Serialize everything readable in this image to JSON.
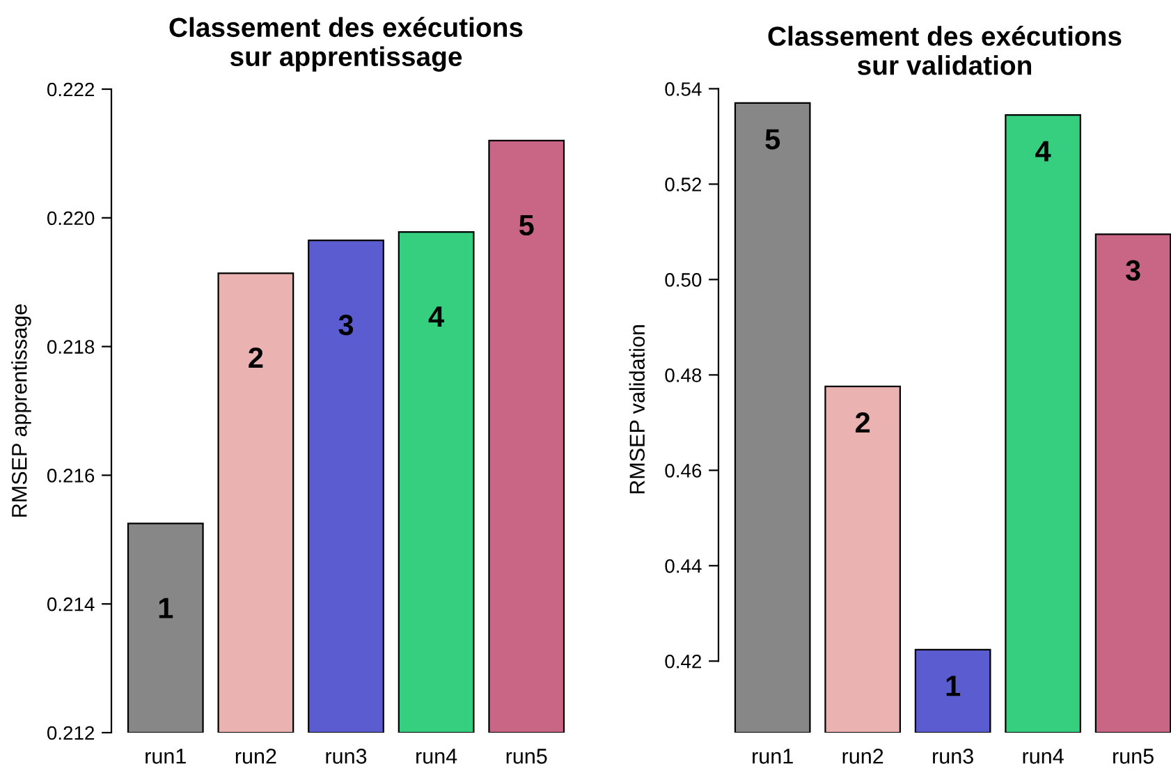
{
  "chart_data": [
    {
      "type": "bar",
      "title": "Classement des exécutions\nsur apprentissage",
      "ylabel": "RMSEP apprentissage",
      "categories": [
        "run1",
        "run2",
        "run3",
        "run4",
        "run5"
      ],
      "values": [
        0.21525,
        0.21914,
        0.21965,
        0.21978,
        0.2212
      ],
      "colors": [
        "#878787",
        "#eab3b1",
        "#5a5ccf",
        "#36cf7f",
        "#c96686"
      ],
      "ylim": [
        0.212,
        0.222
      ],
      "yticks": [
        {
          "value": 0.212,
          "label": "0.212"
        },
        {
          "value": 0.214,
          "label": "0.214"
        },
        {
          "value": 0.216,
          "label": "0.216"
        },
        {
          "value": 0.218,
          "label": "0.218"
        },
        {
          "value": 0.22,
          "label": "0.220"
        },
        {
          "value": 0.222,
          "label": "0.222"
        }
      ],
      "annotations": [
        "1",
        "2",
        "3",
        "4",
        "5"
      ]
    },
    {
      "type": "bar",
      "title": "Classement des exécutions\nsur validation",
      "ylabel": "RMSEP validation",
      "categories": [
        "run1",
        "run2",
        "run3",
        "run4",
        "run5"
      ],
      "values": [
        0.537,
        0.4776,
        0.4224,
        0.5345,
        0.5095
      ],
      "colors": [
        "#878787",
        "#eab3b1",
        "#5a5ccf",
        "#36cf7f",
        "#c96686"
      ],
      "ylim": [
        0.405,
        0.5405
      ],
      "yticks": [
        {
          "value": 0.42,
          "label": "0.42"
        },
        {
          "value": 0.44,
          "label": "0.44"
        },
        {
          "value": 0.46,
          "label": "0.46"
        },
        {
          "value": 0.48,
          "label": "0.48"
        },
        {
          "value": 0.5,
          "label": "0.50"
        },
        {
          "value": 0.52,
          "label": "0.52"
        },
        {
          "value": 0.54,
          "label": "0.54"
        }
      ],
      "annotations": [
        "5",
        "2",
        "1",
        "4",
        "3"
      ]
    }
  ]
}
